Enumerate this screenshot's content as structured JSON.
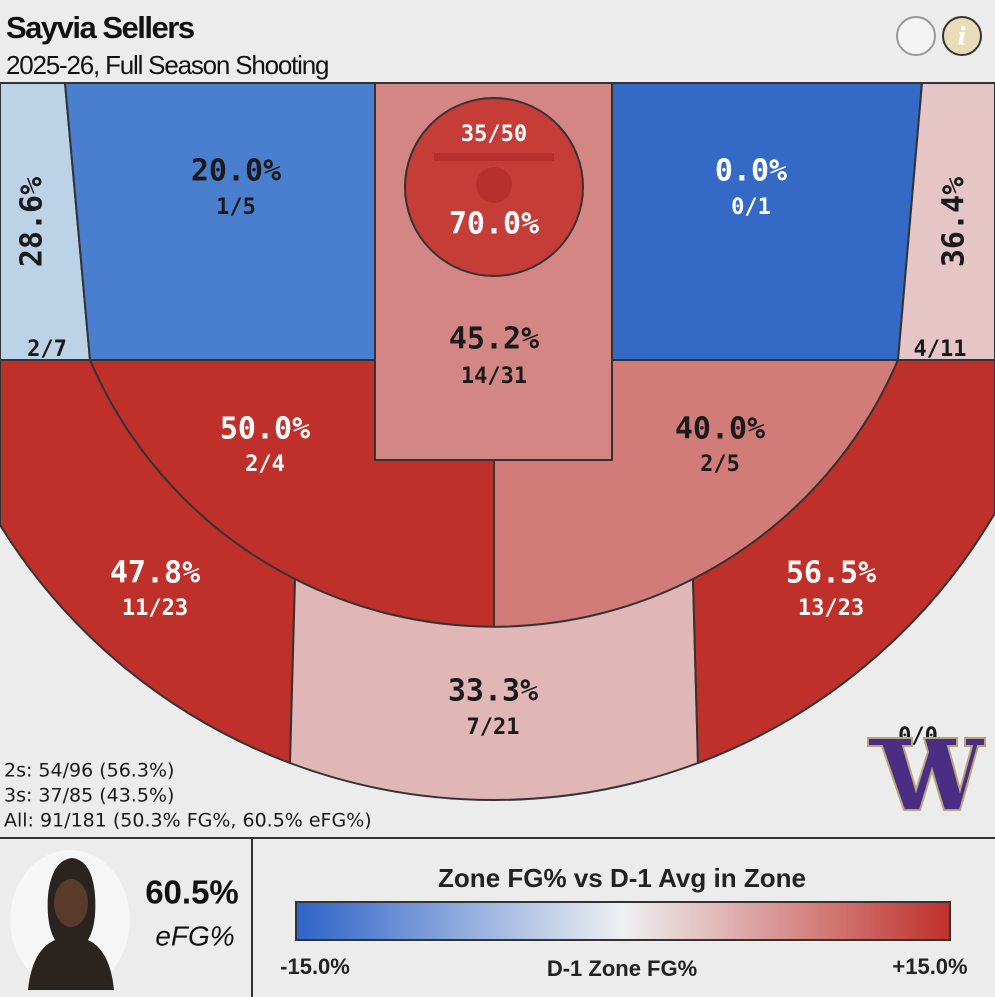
{
  "header": {
    "name": "Sayvia Sellers",
    "subtitle": "2025-26, Full Season Shooting"
  },
  "zones": [
    {
      "pct": "28.6%",
      "made": "2/7",
      "color": "#bcd3e7"
    },
    {
      "pct": "20.0%",
      "made": "1/5",
      "color": "#4a7fd0"
    },
    {
      "pct": "45.2%",
      "made": "14/31",
      "color": "#d38684"
    },
    {
      "pct": "70.0%",
      "made": "35/50",
      "color": "#c63d38"
    },
    {
      "pct": "0.0%",
      "made": "0/1",
      "color": "#3469c6"
    },
    {
      "pct": "36.4%",
      "made": "4/11",
      "color": "#e6c5c7"
    },
    {
      "pct": "50.0%",
      "made": "2/4",
      "color": "#c0302a"
    },
    {
      "pct": "40.0%",
      "made": "2/5",
      "color": "#d17c78"
    },
    {
      "pct": "47.8%",
      "made": "11/23",
      "color": "#c0302a"
    },
    {
      "pct": "33.3%",
      "made": "7/21",
      "color": "#e0b6b6"
    },
    {
      "pct": "56.5%",
      "made": "13/23",
      "color": "#c0302a"
    }
  ],
  "backcourt": "0/0",
  "summary": [
    "2s: 54/96 (56.3%)",
    "3s: 37/85 (43.5%)",
    "All: 91/181 (50.3% FG%, 60.5% eFG%)"
  ],
  "player": {
    "efg": "60.5%",
    "efg_label": "eFG%"
  },
  "legend": {
    "title": "Zone FG% vs D-1 Avg in Zone",
    "low": "-15.0%",
    "axis": "D-1 Zone FG%",
    "high": "+15.0%",
    "colors": [
      "#2d63c8",
      "#eef0f2",
      "#c0302a"
    ]
  }
}
